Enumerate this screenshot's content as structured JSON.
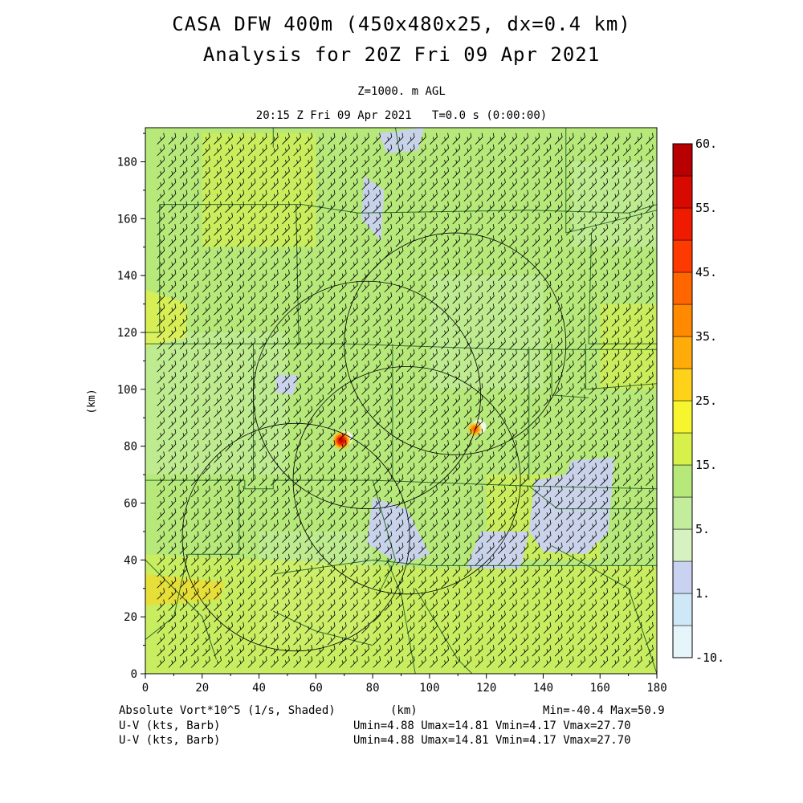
{
  "header": {
    "title_line1": "CASA DFW 400m (450x480x25, dx=0.4 km)",
    "title_line2": "Analysis for 20Z Fri 09 Apr 2021",
    "level": "Z=1000. m AGL",
    "time": "20:15 Z Fri 09 Apr 2021   T=0.0 s (0:00:00)"
  },
  "footer": {
    "field_label": "Absolute Vort*10^5 (1/s, Shaded)",
    "axis_unit": "(km)",
    "minmax": "Min=-40.4 Max=50.9",
    "barb_label_1": "U-V (kts, Barb)",
    "barb_stats_1": "Umin=4.88 Umax=14.81 Vmin=4.17 Vmax=27.70",
    "barb_label_2": "U-V (kts, Barb)",
    "barb_stats_2": "Umin=4.88 Umax=14.81 Vmin=4.17 Vmax=27.70"
  },
  "chart_data": {
    "type": "heatmap",
    "xlabel": "(km)",
    "ylabel": "(km)",
    "xlim": [
      0,
      180
    ],
    "ylim": [
      0,
      192
    ],
    "xticks": [
      0,
      20,
      40,
      60,
      80,
      100,
      120,
      140,
      160,
      180
    ],
    "yticks": [
      0,
      20,
      40,
      60,
      80,
      100,
      120,
      140,
      160,
      180
    ],
    "background_field_range": [
      5,
      15
    ],
    "vorticity_maxima": [
      {
        "x": 69,
        "y": 82,
        "value": 50.9
      },
      {
        "x": 116,
        "y": 86,
        "value": 30
      }
    ],
    "radar_range_rings": [
      {
        "x": 109,
        "y": 116,
        "radius_km": 39
      },
      {
        "x": 78,
        "y": 98,
        "radius_km": 40
      },
      {
        "x": 92,
        "y": 68,
        "radius_km": 40
      },
      {
        "x": 53,
        "y": 48,
        "radius_km": 40
      }
    ],
    "colorbar": {
      "colors": [
        "#e6f5fa",
        "#cfe8f7",
        "#c9d2f0",
        "#d5f2c0",
        "#c3ec9c",
        "#b6e87a",
        "#d7f04a",
        "#f7f52e",
        "#ffd21a",
        "#ffab0a",
        "#ff8a00",
        "#ff6600",
        "#ff3a00",
        "#f01a00",
        "#d80a00",
        "#b80000"
      ],
      "labels": [
        "-10.",
        "1.",
        "5.",
        "15.",
        "25.",
        "35.",
        "45.",
        "55.",
        "60."
      ]
    },
    "wind_barbs": {
      "u_range": [
        4.88,
        14.81
      ],
      "v_range": [
        4.17,
        27.7
      ],
      "units": "kts"
    }
  }
}
